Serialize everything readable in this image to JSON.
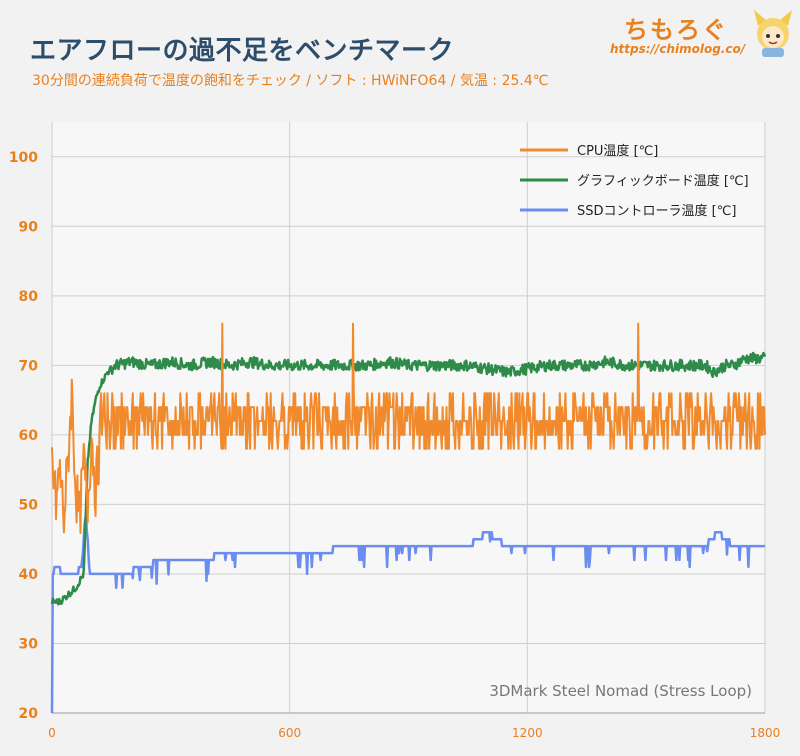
{
  "header": {
    "title": "エアフローの過不足をベンチマーク",
    "subtitle": "30分間の連続負荷で温度の飽和をチェック / ソフト : HWiNFO64 / 気温 : 25.4℃"
  },
  "logo": {
    "text": "ちもろぐ",
    "url": "https://chimolog.co/"
  },
  "chart_data": {
    "type": "line",
    "annotation": "3DMark Steel Nomad (Stress Loop)",
    "xlim": [
      0,
      1800
    ],
    "ylim": [
      20,
      105
    ],
    "xticks": [
      0,
      600,
      1200,
      1800
    ],
    "yticks": [
      20,
      30,
      40,
      50,
      60,
      70,
      80,
      90,
      100
    ],
    "grid": true,
    "legend_position": "top-right",
    "series": [
      {
        "name": "CPU温度 [℃]",
        "color": "#f08a2c",
        "description": "noisy, oscillating mostly between 58 and 66 after warm-up",
        "points": [
          [
            0,
            56
          ],
          [
            10,
            50
          ],
          [
            20,
            55
          ],
          [
            30,
            48
          ],
          [
            40,
            56
          ],
          [
            50,
            66
          ],
          [
            60,
            52
          ],
          [
            70,
            48
          ],
          [
            80,
            56
          ],
          [
            90,
            50
          ],
          [
            100,
            60
          ],
          [
            110,
            52
          ],
          [
            120,
            58
          ],
          [
            130,
            56
          ],
          [
            150,
            60
          ],
          [
            170,
            54
          ],
          [
            200,
            62
          ],
          [
            230,
            58
          ],
          [
            260,
            64
          ],
          [
            300,
            62
          ],
          [
            350,
            66
          ],
          [
            400,
            62
          ],
          [
            430,
            76
          ],
          [
            460,
            60
          ],
          [
            500,
            62
          ],
          [
            550,
            66
          ],
          [
            600,
            60
          ],
          [
            650,
            64
          ],
          [
            700,
            62
          ],
          [
            760,
            76
          ],
          [
            800,
            60
          ],
          [
            850,
            62
          ],
          [
            900,
            66
          ],
          [
            950,
            60
          ],
          [
            1000,
            62
          ],
          [
            1050,
            64
          ],
          [
            1100,
            60
          ],
          [
            1150,
            58
          ],
          [
            1200,
            62
          ],
          [
            1250,
            60
          ],
          [
            1300,
            62
          ],
          [
            1350,
            60
          ],
          [
            1400,
            62
          ],
          [
            1450,
            60
          ],
          [
            1480,
            76
          ],
          [
            1500,
            62
          ],
          [
            1550,
            60
          ],
          [
            1600,
            62
          ],
          [
            1640,
            60
          ],
          [
            1660,
            56
          ],
          [
            1680,
            54
          ],
          [
            1700,
            58
          ],
          [
            1720,
            56
          ],
          [
            1740,
            60
          ],
          [
            1760,
            62
          ],
          [
            1780,
            60
          ],
          [
            1800,
            56
          ]
        ]
      },
      {
        "name": "グラフィックボード温度 [℃]",
        "color": "#2e8b4a",
        "points": [
          [
            0,
            36
          ],
          [
            20,
            36
          ],
          [
            40,
            37
          ],
          [
            60,
            38
          ],
          [
            80,
            40
          ],
          [
            90,
            56
          ],
          [
            100,
            62
          ],
          [
            110,
            65
          ],
          [
            120,
            67
          ],
          [
            140,
            69
          ],
          [
            160,
            70
          ],
          [
            200,
            70.5
          ],
          [
            250,
            70
          ],
          [
            300,
            70.5
          ],
          [
            350,
            70
          ],
          [
            400,
            70.5
          ],
          [
            450,
            70
          ],
          [
            500,
            70.5
          ],
          [
            550,
            70
          ],
          [
            600,
            70
          ],
          [
            650,
            70
          ],
          [
            700,
            70
          ],
          [
            750,
            70
          ],
          [
            800,
            70
          ],
          [
            850,
            70.5
          ],
          [
            900,
            70
          ],
          [
            950,
            70
          ],
          [
            1000,
            70
          ],
          [
            1050,
            70
          ],
          [
            1100,
            69.5
          ],
          [
            1150,
            69
          ],
          [
            1200,
            69.5
          ],
          [
            1250,
            70
          ],
          [
            1300,
            70
          ],
          [
            1350,
            70
          ],
          [
            1400,
            70.5
          ],
          [
            1450,
            70
          ],
          [
            1500,
            70
          ],
          [
            1550,
            70
          ],
          [
            1600,
            70
          ],
          [
            1650,
            70
          ],
          [
            1670,
            69
          ],
          [
            1700,
            70
          ],
          [
            1720,
            70
          ],
          [
            1750,
            71
          ],
          [
            1800,
            71
          ]
        ]
      },
      {
        "name": "SSDコントローラ温度 [℃]",
        "color": "#6b8df0",
        "points": [
          [
            0,
            20
          ],
          [
            2,
            40
          ],
          [
            10,
            41
          ],
          [
            30,
            40
          ],
          [
            60,
            40
          ],
          [
            75,
            41
          ],
          [
            85,
            49
          ],
          [
            95,
            40
          ],
          [
            110,
            40
          ],
          [
            200,
            40
          ],
          [
            210,
            41
          ],
          [
            300,
            42
          ],
          [
            400,
            42
          ],
          [
            420,
            43
          ],
          [
            500,
            43
          ],
          [
            600,
            43
          ],
          [
            700,
            43
          ],
          [
            720,
            44
          ],
          [
            800,
            44
          ],
          [
            900,
            44
          ],
          [
            1000,
            44
          ],
          [
            1050,
            44
          ],
          [
            1100,
            46
          ],
          [
            1120,
            45
          ],
          [
            1150,
            44
          ],
          [
            1200,
            44
          ],
          [
            1300,
            44
          ],
          [
            1400,
            44
          ],
          [
            1500,
            44
          ],
          [
            1600,
            44
          ],
          [
            1650,
            44
          ],
          [
            1680,
            46
          ],
          [
            1700,
            45
          ],
          [
            1720,
            44
          ],
          [
            1800,
            44
          ]
        ]
      }
    ]
  }
}
